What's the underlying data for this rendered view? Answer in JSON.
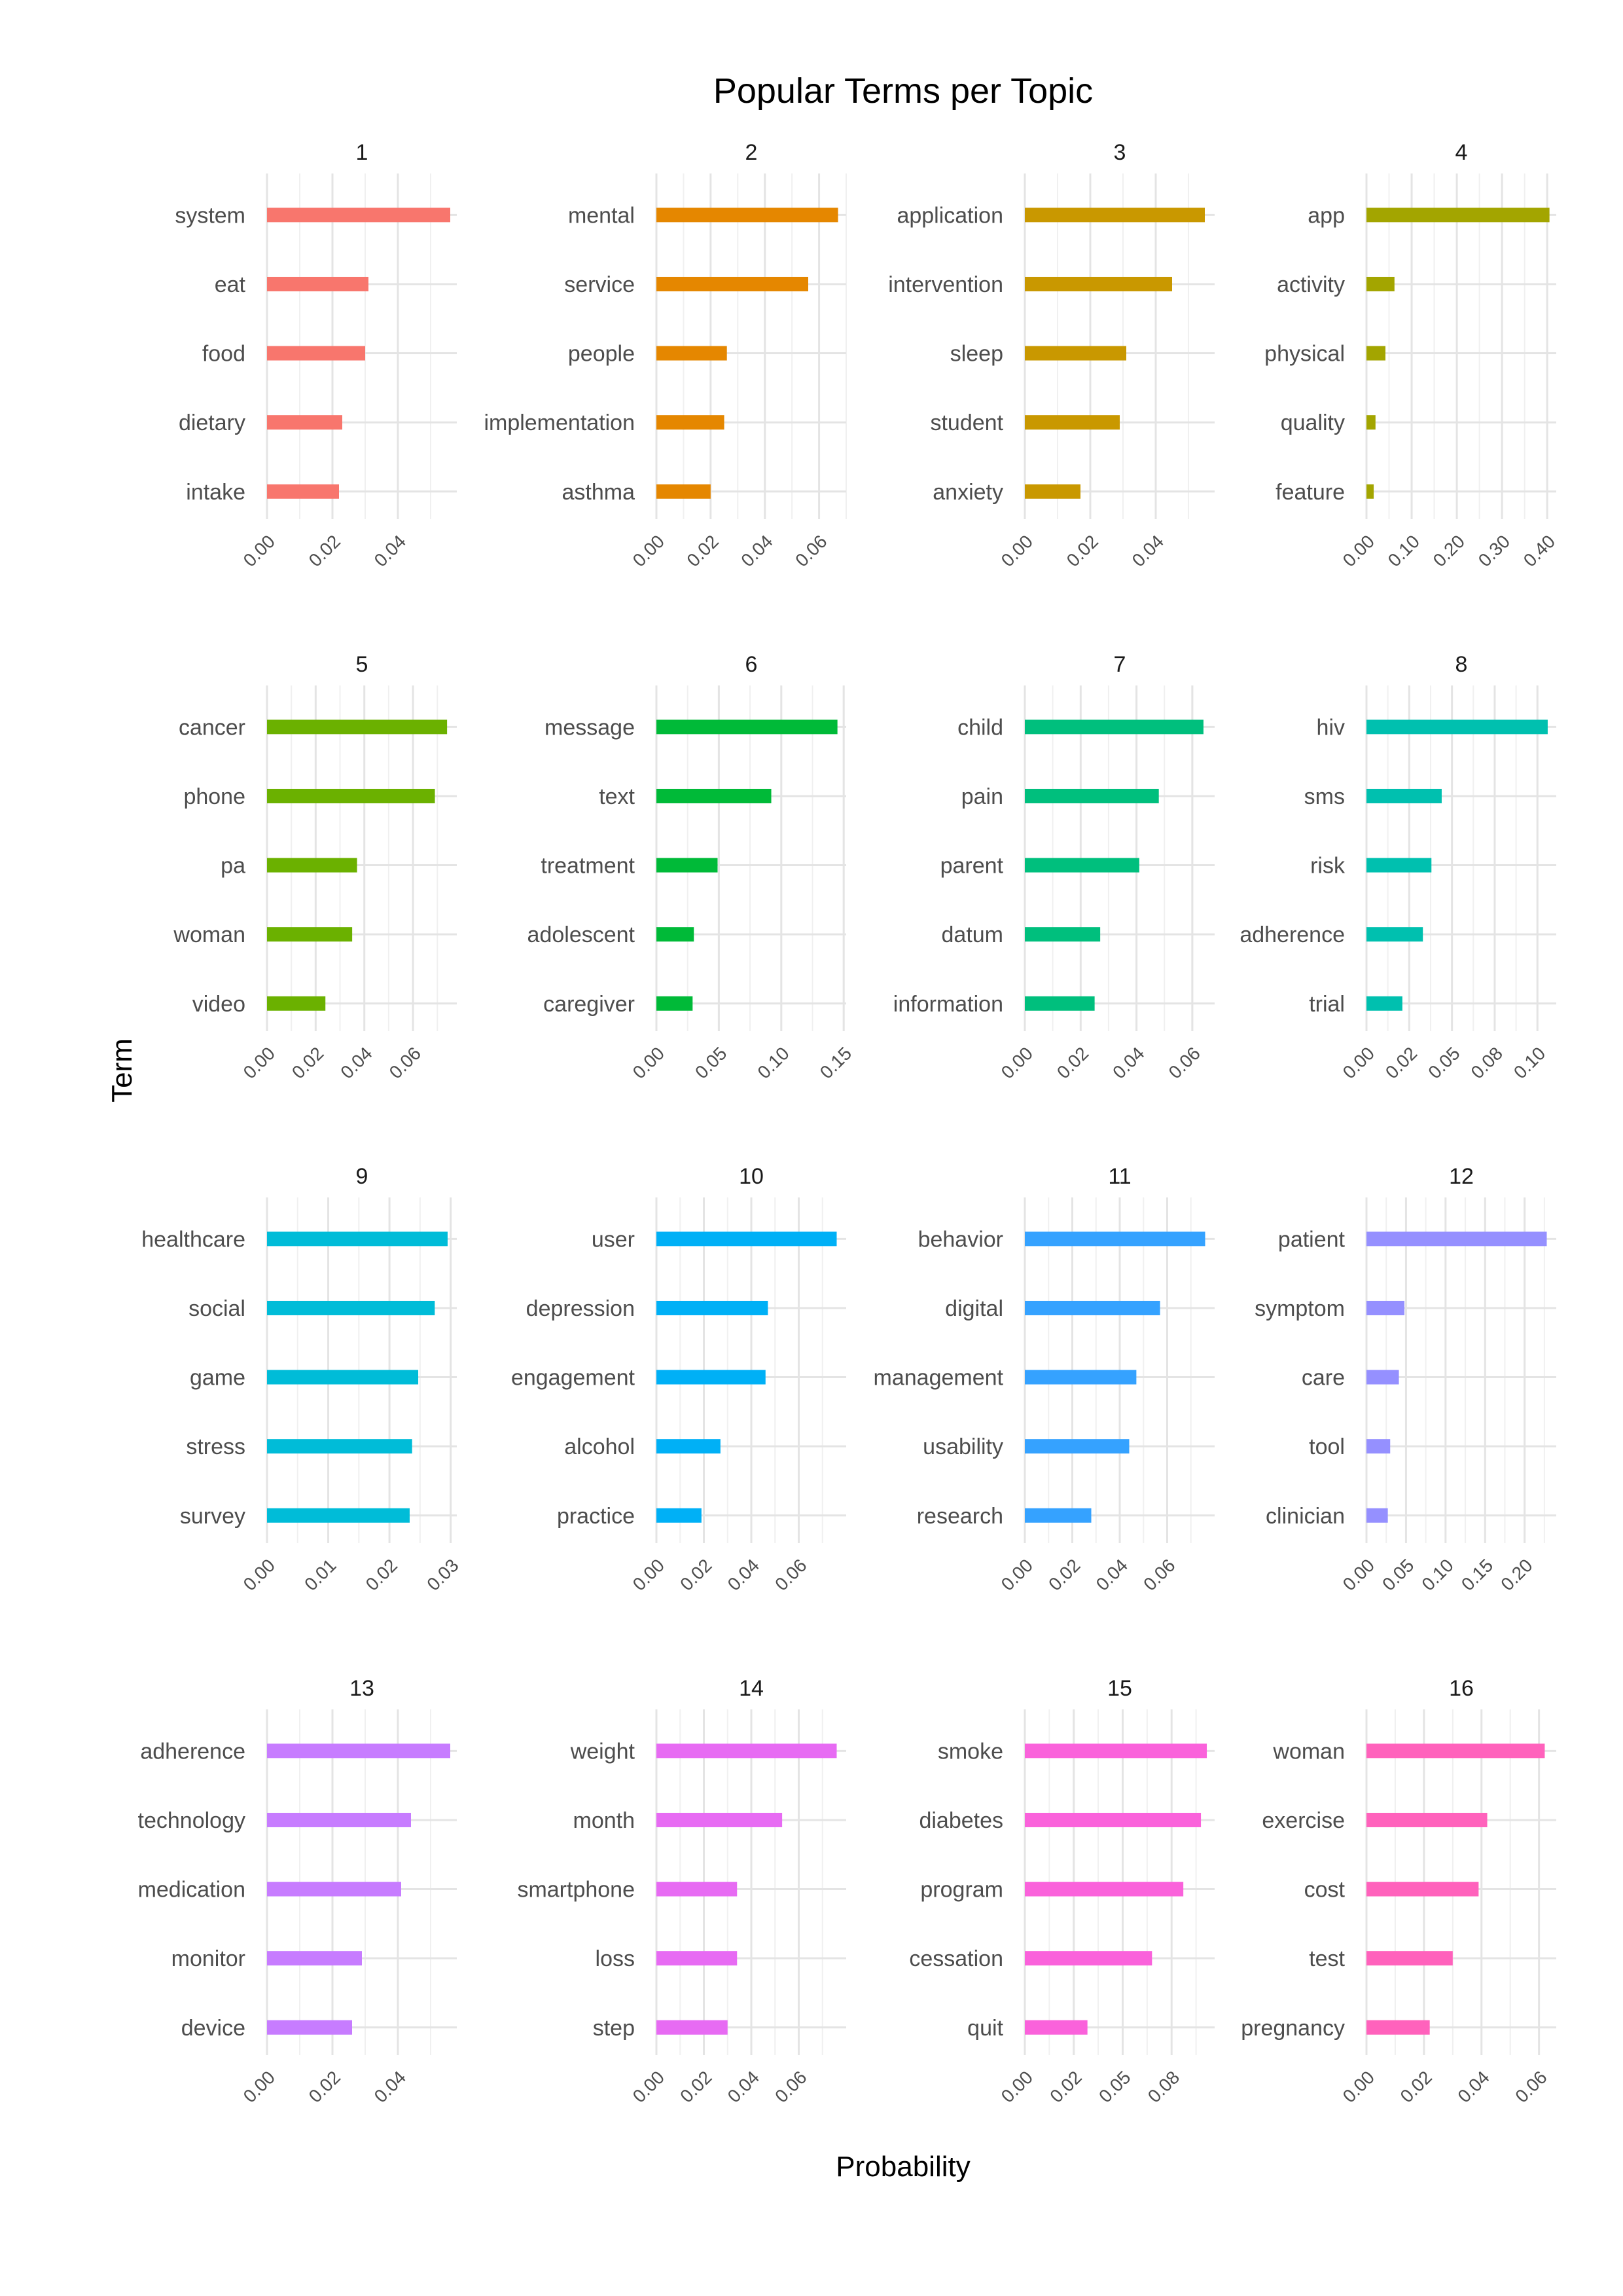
{
  "chart_data": {
    "type": "bar",
    "orientation": "horizontal",
    "title": "Popular Terms per Topic",
    "xlabel": "Probability",
    "ylabel": "Term",
    "grid": true,
    "legend": "none",
    "facets": [
      {
        "label": "1",
        "color": "#F8766D",
        "terms": [
          "system",
          "eat",
          "food",
          "dietary",
          "intake"
        ],
        "values": [
          0.056,
          0.031,
          0.03,
          0.023,
          0.022
        ],
        "xlim": [
          0,
          0.058
        ],
        "ticks": [
          0,
          0.02,
          0.04
        ],
        "tick_labels": [
          "0.00",
          "0.02",
          "0.04"
        ]
      },
      {
        "label": "2",
        "color": "#E58700",
        "terms": [
          "mental",
          "service",
          "people",
          "implementation",
          "asthma"
        ],
        "values": [
          0.067,
          0.056,
          0.026,
          0.025,
          0.02
        ],
        "xlim": [
          0,
          0.07
        ],
        "ticks": [
          0,
          0.02,
          0.04,
          0.06
        ],
        "tick_labels": [
          "0.00",
          "0.02",
          "0.04",
          "0.06"
        ]
      },
      {
        "label": "3",
        "color": "#C99800",
        "terms": [
          "application",
          "intervention",
          "sleep",
          "student",
          "anxiety"
        ],
        "values": [
          0.055,
          0.045,
          0.031,
          0.029,
          0.017
        ],
        "xlim": [
          0,
          0.058
        ],
        "ticks": [
          0,
          0.02,
          0.04
        ],
        "tick_labels": [
          "0.00",
          "0.02",
          "0.04"
        ]
      },
      {
        "label": "4",
        "color": "#A3A500",
        "terms": [
          "app",
          "activity",
          "physical",
          "quality",
          "feature"
        ],
        "values": [
          0.405,
          0.062,
          0.042,
          0.02,
          0.016
        ],
        "xlim": [
          0,
          0.42
        ],
        "ticks": [
          0,
          0.1,
          0.2,
          0.3,
          0.4
        ],
        "tick_labels": [
          "0.00",
          "0.10",
          "0.20",
          "0.30",
          "0.40"
        ]
      },
      {
        "label": "5",
        "color": "#6BB100",
        "terms": [
          "cancer",
          "phone",
          "pa",
          "woman",
          "video"
        ],
        "values": [
          0.074,
          0.069,
          0.037,
          0.035,
          0.024
        ],
        "xlim": [
          0,
          0.078
        ],
        "ticks": [
          0,
          0.02,
          0.04,
          0.06
        ],
        "tick_labels": [
          "0.00",
          "0.02",
          "0.04",
          "0.06"
        ]
      },
      {
        "label": "6",
        "color": "#00BA38",
        "terms": [
          "message",
          "text",
          "treatment",
          "adolescent",
          "caregiver"
        ],
        "values": [
          0.145,
          0.092,
          0.049,
          0.03,
          0.029
        ],
        "xlim": [
          0,
          0.152
        ],
        "ticks": [
          0,
          0.05,
          0.1,
          0.15
        ],
        "tick_labels": [
          "0.00",
          "0.05",
          "0.10",
          "0.15"
        ]
      },
      {
        "label": "7",
        "color": "#00BF7D",
        "terms": [
          "child",
          "pain",
          "parent",
          "datum",
          "information"
        ],
        "values": [
          0.064,
          0.048,
          0.041,
          0.027,
          0.025
        ],
        "xlim": [
          0,
          0.068
        ],
        "ticks": [
          0,
          0.02,
          0.04,
          0.06
        ],
        "tick_labels": [
          "0.00",
          "0.02",
          "0.04",
          "0.06"
        ]
      },
      {
        "label": "8",
        "color": "#00C0AF",
        "terms": [
          "hiv",
          "sms",
          "risk",
          "adherence",
          "trial"
        ],
        "values": [
          0.106,
          0.044,
          0.038,
          0.033,
          0.021
        ],
        "xlim": [
          0,
          0.111
        ],
        "ticks": [
          0,
          0.025,
          0.05,
          0.075,
          0.1
        ],
        "tick_labels": [
          "0.00",
          "0.02",
          "0.05",
          "0.08",
          "0.10"
        ]
      },
      {
        "label": "9",
        "color": "#00BCD8",
        "terms": [
          "healthcare",
          "social",
          "game",
          "stress",
          "survey"
        ],
        "values": [
          0.0295,
          0.0274,
          0.0247,
          0.0237,
          0.0233
        ],
        "xlim": [
          0,
          0.031
        ],
        "ticks": [
          0,
          0.01,
          0.02,
          0.03
        ],
        "tick_labels": [
          "0.00",
          "0.01",
          "0.02",
          "0.03"
        ]
      },
      {
        "label": "10",
        "color": "#00B0F6",
        "terms": [
          "user",
          "depression",
          "engagement",
          "alcohol",
          "practice"
        ],
        "values": [
          0.076,
          0.047,
          0.046,
          0.027,
          0.019
        ],
        "xlim": [
          0,
          0.08
        ],
        "ticks": [
          0,
          0.02,
          0.04,
          0.06
        ],
        "tick_labels": [
          "0.00",
          "0.02",
          "0.04",
          "0.06"
        ]
      },
      {
        "label": "11",
        "color": "#35A2FF",
        "terms": [
          "behavior",
          "digital",
          "management",
          "usability",
          "research"
        ],
        "values": [
          0.076,
          0.057,
          0.047,
          0.044,
          0.028
        ],
        "xlim": [
          0,
          0.08
        ],
        "ticks": [
          0,
          0.02,
          0.04,
          0.06
        ],
        "tick_labels": [
          "0.00",
          "0.02",
          "0.04",
          "0.06"
        ]
      },
      {
        "label": "12",
        "color": "#9590FF",
        "terms": [
          "patient",
          "symptom",
          "care",
          "tool",
          "clinician"
        ],
        "values": [
          0.228,
          0.048,
          0.041,
          0.03,
          0.027
        ],
        "xlim": [
          0,
          0.24
        ],
        "ticks": [
          0,
          0.05,
          0.1,
          0.15,
          0.2
        ],
        "tick_labels": [
          "0.00",
          "0.05",
          "0.10",
          "0.15",
          "0.20"
        ]
      },
      {
        "label": "13",
        "color": "#C77CFF",
        "terms": [
          "adherence",
          "technology",
          "medication",
          "monitor",
          "device"
        ],
        "values": [
          0.056,
          0.044,
          0.041,
          0.029,
          0.026
        ],
        "xlim": [
          0,
          0.058
        ],
        "ticks": [
          0,
          0.02,
          0.04
        ],
        "tick_labels": [
          "0.00",
          "0.02",
          "0.04"
        ]
      },
      {
        "label": "14",
        "color": "#E76BF3",
        "terms": [
          "weight",
          "month",
          "smartphone",
          "loss",
          "step"
        ],
        "values": [
          0.076,
          0.053,
          0.034,
          0.034,
          0.03
        ],
        "xlim": [
          0,
          0.08
        ],
        "ticks": [
          0,
          0.02,
          0.04,
          0.06
        ],
        "tick_labels": [
          "0.00",
          "0.02",
          "0.04",
          "0.06"
        ]
      },
      {
        "label": "15",
        "color": "#FA62DB",
        "terms": [
          "smoke",
          "diabetes",
          "program",
          "cessation",
          "quit"
        ],
        "values": [
          0.093,
          0.09,
          0.081,
          0.065,
          0.032
        ],
        "xlim": [
          0,
          0.097
        ],
        "ticks": [
          0,
          0.025,
          0.05,
          0.075
        ],
        "tick_labels": [
          "0.00",
          "0.02",
          "0.05",
          "0.08"
        ]
      },
      {
        "label": "16",
        "color": "#FF62BC",
        "terms": [
          "woman",
          "exercise",
          "cost",
          "test",
          "pregnancy"
        ],
        "values": [
          0.062,
          0.042,
          0.039,
          0.03,
          0.022
        ],
        "xlim": [
          0,
          0.066
        ],
        "ticks": [
          0,
          0.02,
          0.04,
          0.06
        ],
        "tick_labels": [
          "0.00",
          "0.02",
          "0.04",
          "0.06"
        ]
      }
    ]
  }
}
